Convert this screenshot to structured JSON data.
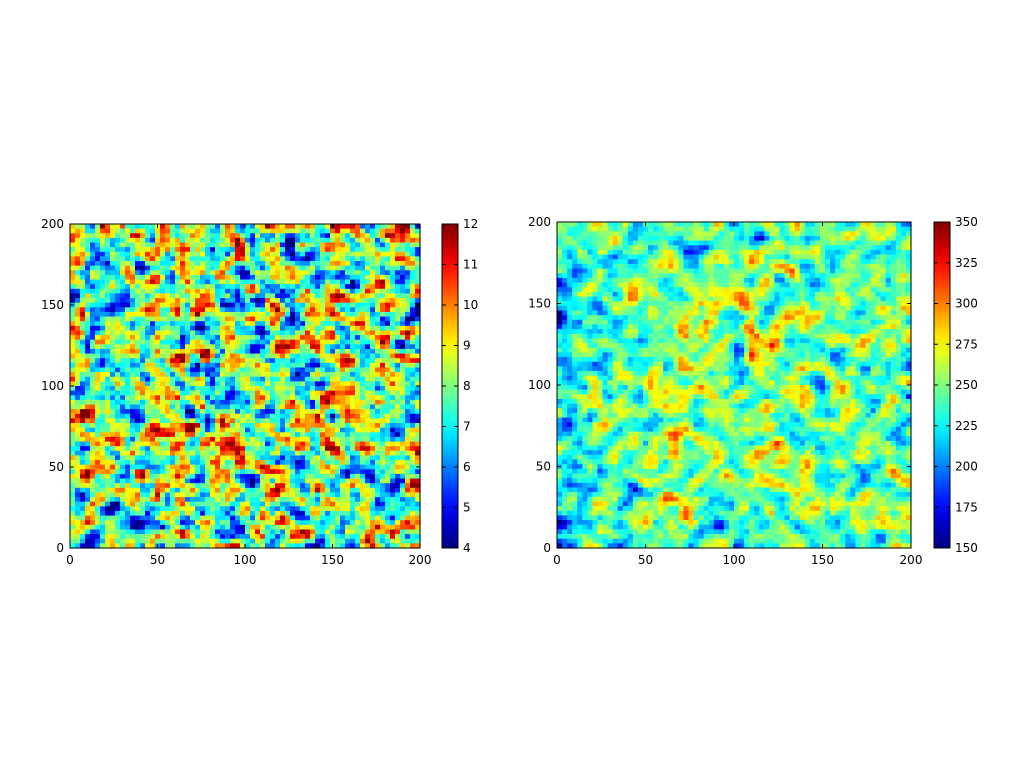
{
  "chart_data": [
    {
      "type": "heatmap",
      "title": "",
      "xlabel": "",
      "ylabel": "",
      "xlim": [
        0,
        200
      ],
      "ylim": [
        0,
        200
      ],
      "grid": false,
      "xticks": [
        "0",
        "50",
        "100",
        "150",
        "200"
      ],
      "yticks": [
        "0",
        "50",
        "100",
        "150",
        "200"
      ],
      "colormap": "jet",
      "colorbar": {
        "range": [
          4,
          12
        ],
        "ticks": [
          "4",
          "5",
          "6",
          "7",
          "8",
          "9",
          "10",
          "11",
          "12"
        ]
      },
      "values_description_free": true,
      "field": {
        "mean": 8,
        "std": 1.6,
        "trend": "none",
        "seed": 17
      }
    },
    {
      "type": "heatmap",
      "title": "",
      "xlabel": "",
      "ylabel": "",
      "xlim": [
        0,
        200
      ],
      "ylim": [
        0,
        200
      ],
      "grid": false,
      "xticks": [
        "0",
        "50",
        "100",
        "150",
        "200"
      ],
      "yticks": [
        "0",
        "50",
        "100",
        "150",
        "200"
      ],
      "colormap": "jet",
      "colorbar": {
        "range": [
          150,
          350
        ],
        "ticks": [
          "150",
          "175",
          "200",
          "225",
          "250",
          "275",
          "300",
          "325",
          "350"
        ]
      },
      "values_description_free": true,
      "field": {
        "mean": 245,
        "std": 22,
        "trend": "higher toward center-right, lower at left edge",
        "seed": 42
      }
    }
  ]
}
